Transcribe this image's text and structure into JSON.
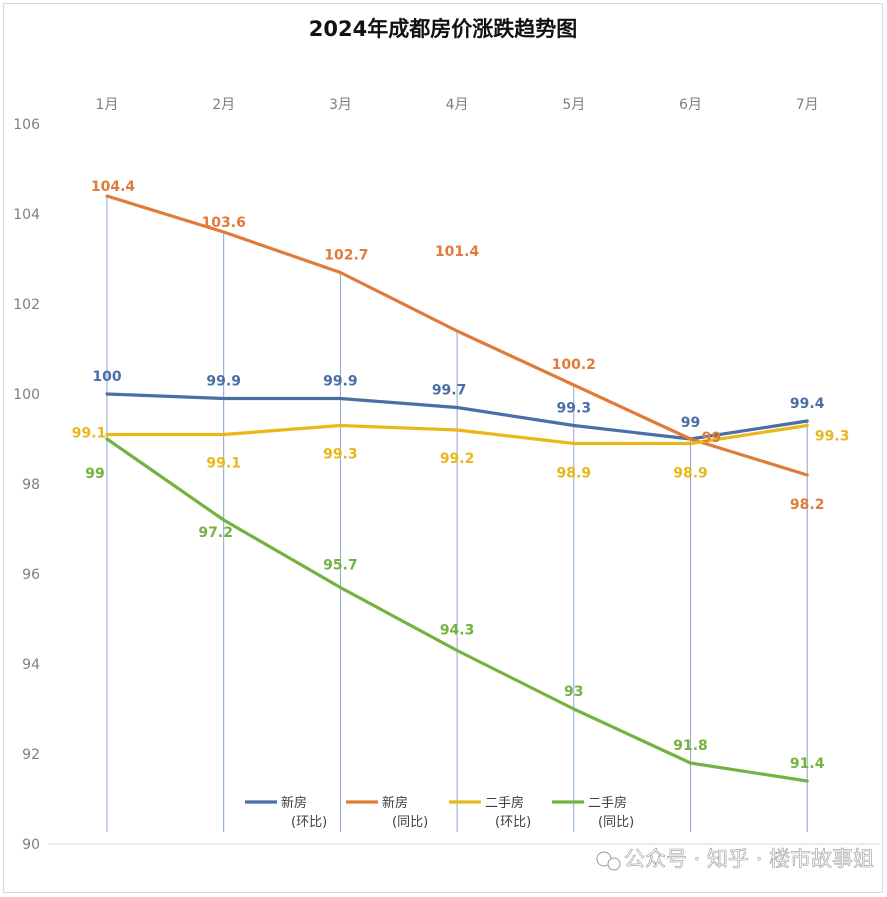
{
  "chart_data": {
    "type": "line",
    "title": "2024年成都房价涨跌趋势图",
    "categories": [
      "1月",
      "2月",
      "3月",
      "4月",
      "5月",
      "6月",
      "7月"
    ],
    "ylim": [
      90,
      106
    ],
    "yticks": [
      90,
      92,
      94,
      96,
      98,
      100,
      102,
      104,
      106
    ],
    "xaxis_position": "top",
    "grid": "vertical drop lines at each month",
    "legend_position": "bottom-center",
    "series": [
      {
        "name": "新房（环比）",
        "legend_lines": [
          "新房",
          "(环比)"
        ],
        "color": "#4a6fa5",
        "values": [
          100,
          99.9,
          99.9,
          99.7,
          99.3,
          99,
          99.4
        ]
      },
      {
        "name": "新房（同比）",
        "legend_lines": [
          "新房",
          "(同比)"
        ],
        "color": "#e07b39",
        "values": [
          104.4,
          103.6,
          102.7,
          101.4,
          100.2,
          99,
          98.2
        ]
      },
      {
        "name": "二手房（环比）",
        "legend_lines": [
          "二手房",
          "(环比)"
        ],
        "color": "#e8b71a",
        "values": [
          99.1,
          99.1,
          99.3,
          99.2,
          98.9,
          98.9,
          99.3
        ]
      },
      {
        "name": "二手房（同比）",
        "legend_lines": [
          "二手房",
          "(同比)"
        ],
        "color": "#74b241",
        "values": [
          99,
          97.2,
          95.7,
          94.3,
          93,
          91.8,
          91.4
        ]
      }
    ]
  },
  "watermark": "公众号 · 知乎 · 楼市故事姐"
}
